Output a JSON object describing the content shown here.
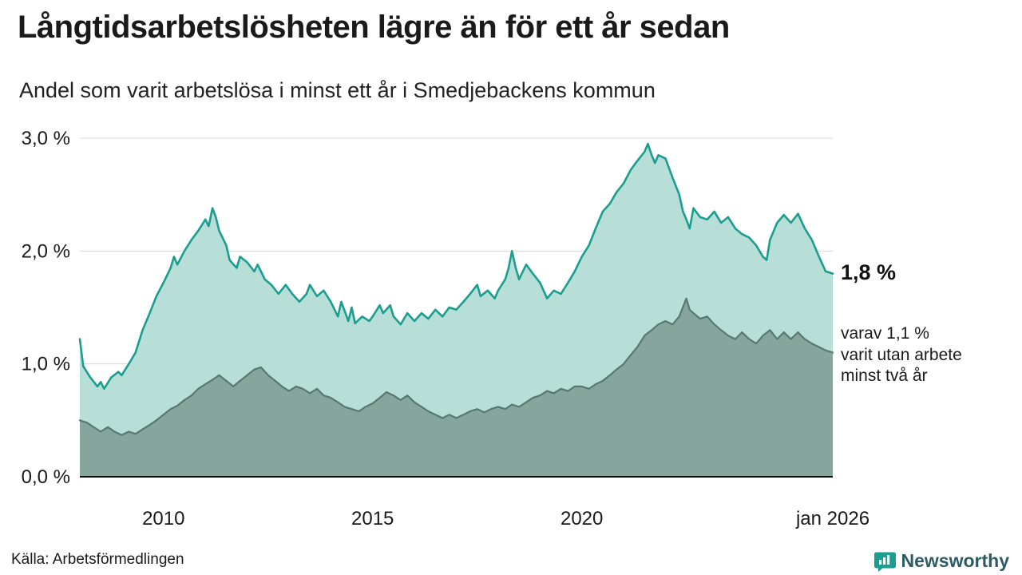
{
  "header": {
    "title": "Långtidsarbetslösheten lägre än för ett år sedan",
    "subtitle": "Andel som varit arbetslösa i minst ett år i Smedjebackens kommun"
  },
  "annotations": {
    "current_value": "1,8 %",
    "secondary": "varav 1,1 %\nvarit utan arbete\nminst två år"
  },
  "footer": {
    "source": "Källa: Arbetsförmedlingen",
    "brand": "Newsworthy"
  },
  "colors": {
    "accent_teal": "#1b9e90",
    "fill_teal": "#b7ded7",
    "stroke_gray": "#57796f",
    "fill_gray": "#86a59c",
    "grid": "#d8d8d8",
    "axis": "#111111",
    "brand_text": "#2d5b63"
  },
  "chart_data": {
    "type": "area",
    "title": "Långtidsarbetslösheten lägre än för ett år sedan",
    "subtitle": "Andel som varit arbetslösa i minst ett år i Smedjebackens kommun",
    "grid": true,
    "legend_position": "none",
    "x_axis": {
      "min": 2008,
      "max": 2026,
      "ticks": [
        {
          "x": 2010,
          "label": "2010"
        },
        {
          "x": 2015,
          "label": "2015"
        },
        {
          "x": 2020,
          "label": "2020"
        },
        {
          "x": 2026,
          "label": "jan 2026"
        }
      ]
    },
    "y_axis": {
      "min": 0,
      "max": 3,
      "ticks": [
        {
          "v": 0,
          "label": "0,0 %"
        },
        {
          "v": 1,
          "label": "1,0 %"
        },
        {
          "v": 2,
          "label": "2,0 %"
        },
        {
          "v": 3,
          "label": "3,0 %"
        }
      ]
    },
    "series": [
      {
        "name": "Andel som varit arbetslösa i minst ett år",
        "stroke": "#1b9e90",
        "fill": "#b7ded7",
        "stroke_width": 2.6,
        "end_label": "1,8 %",
        "points": [
          [
            2008.0,
            1.22
          ],
          [
            2008.08,
            0.98
          ],
          [
            2008.25,
            0.88
          ],
          [
            2008.42,
            0.8
          ],
          [
            2008.5,
            0.84
          ],
          [
            2008.58,
            0.78
          ],
          [
            2008.75,
            0.88
          ],
          [
            2008.92,
            0.93
          ],
          [
            2009.0,
            0.9
          ],
          [
            2009.17,
            1.0
          ],
          [
            2009.33,
            1.1
          ],
          [
            2009.5,
            1.3
          ],
          [
            2009.67,
            1.45
          ],
          [
            2009.83,
            1.6
          ],
          [
            2010.0,
            1.72
          ],
          [
            2010.17,
            1.85
          ],
          [
            2010.25,
            1.95
          ],
          [
            2010.33,
            1.88
          ],
          [
            2010.5,
            2.0
          ],
          [
            2010.67,
            2.1
          ],
          [
            2010.83,
            2.18
          ],
          [
            2011.0,
            2.28
          ],
          [
            2011.08,
            2.22
          ],
          [
            2011.17,
            2.38
          ],
          [
            2011.25,
            2.3
          ],
          [
            2011.33,
            2.18
          ],
          [
            2011.5,
            2.05
          ],
          [
            2011.58,
            1.92
          ],
          [
            2011.75,
            1.85
          ],
          [
            2011.83,
            1.95
          ],
          [
            2012.0,
            1.9
          ],
          [
            2012.17,
            1.82
          ],
          [
            2012.25,
            1.88
          ],
          [
            2012.42,
            1.75
          ],
          [
            2012.58,
            1.7
          ],
          [
            2012.75,
            1.62
          ],
          [
            2012.92,
            1.7
          ],
          [
            2013.08,
            1.62
          ],
          [
            2013.25,
            1.55
          ],
          [
            2013.42,
            1.62
          ],
          [
            2013.5,
            1.7
          ],
          [
            2013.67,
            1.6
          ],
          [
            2013.83,
            1.65
          ],
          [
            2014.0,
            1.55
          ],
          [
            2014.17,
            1.42
          ],
          [
            2014.25,
            1.55
          ],
          [
            2014.42,
            1.38
          ],
          [
            2014.5,
            1.5
          ],
          [
            2014.58,
            1.36
          ],
          [
            2014.75,
            1.42
          ],
          [
            2014.92,
            1.38
          ],
          [
            2015.0,
            1.42
          ],
          [
            2015.17,
            1.52
          ],
          [
            2015.25,
            1.45
          ],
          [
            2015.42,
            1.52
          ],
          [
            2015.5,
            1.42
          ],
          [
            2015.67,
            1.35
          ],
          [
            2015.83,
            1.45
          ],
          [
            2016.0,
            1.38
          ],
          [
            2016.17,
            1.45
          ],
          [
            2016.33,
            1.4
          ],
          [
            2016.5,
            1.48
          ],
          [
            2016.67,
            1.42
          ],
          [
            2016.83,
            1.5
          ],
          [
            2017.0,
            1.48
          ],
          [
            2017.17,
            1.55
          ],
          [
            2017.33,
            1.62
          ],
          [
            2017.5,
            1.7
          ],
          [
            2017.58,
            1.6
          ],
          [
            2017.75,
            1.65
          ],
          [
            2017.92,
            1.58
          ],
          [
            2018.0,
            1.65
          ],
          [
            2018.17,
            1.75
          ],
          [
            2018.25,
            1.85
          ],
          [
            2018.33,
            2.0
          ],
          [
            2018.42,
            1.85
          ],
          [
            2018.5,
            1.75
          ],
          [
            2018.67,
            1.88
          ],
          [
            2018.83,
            1.8
          ],
          [
            2019.0,
            1.72
          ],
          [
            2019.17,
            1.58
          ],
          [
            2019.33,
            1.65
          ],
          [
            2019.5,
            1.62
          ],
          [
            2019.67,
            1.72
          ],
          [
            2019.83,
            1.82
          ],
          [
            2020.0,
            1.95
          ],
          [
            2020.17,
            2.05
          ],
          [
            2020.33,
            2.2
          ],
          [
            2020.5,
            2.35
          ],
          [
            2020.67,
            2.42
          ],
          [
            2020.83,
            2.52
          ],
          [
            2021.0,
            2.6
          ],
          [
            2021.17,
            2.72
          ],
          [
            2021.33,
            2.8
          ],
          [
            2021.5,
            2.88
          ],
          [
            2021.58,
            2.95
          ],
          [
            2021.67,
            2.85
          ],
          [
            2021.75,
            2.78
          ],
          [
            2021.83,
            2.85
          ],
          [
            2022.0,
            2.82
          ],
          [
            2022.17,
            2.65
          ],
          [
            2022.33,
            2.5
          ],
          [
            2022.42,
            2.35
          ],
          [
            2022.5,
            2.28
          ],
          [
            2022.58,
            2.2
          ],
          [
            2022.67,
            2.38
          ],
          [
            2022.83,
            2.3
          ],
          [
            2023.0,
            2.28
          ],
          [
            2023.17,
            2.35
          ],
          [
            2023.33,
            2.25
          ],
          [
            2023.5,
            2.3
          ],
          [
            2023.67,
            2.2
          ],
          [
            2023.83,
            2.15
          ],
          [
            2024.0,
            2.12
          ],
          [
            2024.17,
            2.05
          ],
          [
            2024.33,
            1.95
          ],
          [
            2024.42,
            1.92
          ],
          [
            2024.5,
            2.1
          ],
          [
            2024.67,
            2.25
          ],
          [
            2024.83,
            2.32
          ],
          [
            2025.0,
            2.25
          ],
          [
            2025.17,
            2.33
          ],
          [
            2025.33,
            2.2
          ],
          [
            2025.5,
            2.1
          ],
          [
            2025.67,
            1.95
          ],
          [
            2025.83,
            1.82
          ],
          [
            2026.0,
            1.8
          ]
        ]
      },
      {
        "name": "varav utan arbete minst två år",
        "stroke": "#57796f",
        "fill": "#86a59c",
        "stroke_width": 2.2,
        "end_label": "1,1 %",
        "points": [
          [
            2008.0,
            0.5
          ],
          [
            2008.17,
            0.48
          ],
          [
            2008.33,
            0.44
          ],
          [
            2008.5,
            0.4
          ],
          [
            2008.67,
            0.44
          ],
          [
            2008.83,
            0.4
          ],
          [
            2009.0,
            0.37
          ],
          [
            2009.17,
            0.4
          ],
          [
            2009.33,
            0.38
          ],
          [
            2009.5,
            0.42
          ],
          [
            2009.67,
            0.46
          ],
          [
            2009.83,
            0.5
          ],
          [
            2010.0,
            0.55
          ],
          [
            2010.17,
            0.6
          ],
          [
            2010.33,
            0.63
          ],
          [
            2010.5,
            0.68
          ],
          [
            2010.67,
            0.72
          ],
          [
            2010.83,
            0.78
          ],
          [
            2011.0,
            0.82
          ],
          [
            2011.17,
            0.86
          ],
          [
            2011.33,
            0.9
          ],
          [
            2011.5,
            0.85
          ],
          [
            2011.67,
            0.8
          ],
          [
            2011.83,
            0.85
          ],
          [
            2012.0,
            0.9
          ],
          [
            2012.17,
            0.95
          ],
          [
            2012.33,
            0.97
          ],
          [
            2012.5,
            0.9
          ],
          [
            2012.67,
            0.85
          ],
          [
            2012.83,
            0.8
          ],
          [
            2013.0,
            0.76
          ],
          [
            2013.17,
            0.8
          ],
          [
            2013.33,
            0.78
          ],
          [
            2013.5,
            0.74
          ],
          [
            2013.67,
            0.78
          ],
          [
            2013.83,
            0.72
          ],
          [
            2014.0,
            0.7
          ],
          [
            2014.17,
            0.66
          ],
          [
            2014.33,
            0.62
          ],
          [
            2014.5,
            0.6
          ],
          [
            2014.67,
            0.58
          ],
          [
            2014.83,
            0.62
          ],
          [
            2015.0,
            0.65
          ],
          [
            2015.17,
            0.7
          ],
          [
            2015.33,
            0.75
          ],
          [
            2015.5,
            0.72
          ],
          [
            2015.67,
            0.68
          ],
          [
            2015.83,
            0.72
          ],
          [
            2016.0,
            0.66
          ],
          [
            2016.17,
            0.62
          ],
          [
            2016.33,
            0.58
          ],
          [
            2016.5,
            0.55
          ],
          [
            2016.67,
            0.52
          ],
          [
            2016.83,
            0.55
          ],
          [
            2017.0,
            0.52
          ],
          [
            2017.17,
            0.55
          ],
          [
            2017.33,
            0.58
          ],
          [
            2017.5,
            0.6
          ],
          [
            2017.67,
            0.57
          ],
          [
            2017.83,
            0.6
          ],
          [
            2018.0,
            0.62
          ],
          [
            2018.17,
            0.6
          ],
          [
            2018.33,
            0.64
          ],
          [
            2018.5,
            0.62
          ],
          [
            2018.67,
            0.66
          ],
          [
            2018.83,
            0.7
          ],
          [
            2019.0,
            0.72
          ],
          [
            2019.17,
            0.76
          ],
          [
            2019.33,
            0.74
          ],
          [
            2019.5,
            0.78
          ],
          [
            2019.67,
            0.76
          ],
          [
            2019.83,
            0.8
          ],
          [
            2020.0,
            0.8
          ],
          [
            2020.17,
            0.78
          ],
          [
            2020.33,
            0.82
          ],
          [
            2020.5,
            0.85
          ],
          [
            2020.67,
            0.9
          ],
          [
            2020.83,
            0.95
          ],
          [
            2021.0,
            1.0
          ],
          [
            2021.17,
            1.08
          ],
          [
            2021.33,
            1.15
          ],
          [
            2021.5,
            1.25
          ],
          [
            2021.67,
            1.3
          ],
          [
            2021.83,
            1.35
          ],
          [
            2022.0,
            1.38
          ],
          [
            2022.17,
            1.35
          ],
          [
            2022.33,
            1.42
          ],
          [
            2022.5,
            1.58
          ],
          [
            2022.58,
            1.48
          ],
          [
            2022.67,
            1.45
          ],
          [
            2022.83,
            1.4
          ],
          [
            2023.0,
            1.42
          ],
          [
            2023.17,
            1.35
          ],
          [
            2023.33,
            1.3
          ],
          [
            2023.5,
            1.25
          ],
          [
            2023.67,
            1.22
          ],
          [
            2023.83,
            1.28
          ],
          [
            2024.0,
            1.22
          ],
          [
            2024.17,
            1.18
          ],
          [
            2024.33,
            1.25
          ],
          [
            2024.5,
            1.3
          ],
          [
            2024.67,
            1.22
          ],
          [
            2024.83,
            1.28
          ],
          [
            2025.0,
            1.22
          ],
          [
            2025.17,
            1.28
          ],
          [
            2025.33,
            1.22
          ],
          [
            2025.5,
            1.18
          ],
          [
            2025.67,
            1.15
          ],
          [
            2025.83,
            1.12
          ],
          [
            2026.0,
            1.1
          ]
        ]
      }
    ]
  }
}
